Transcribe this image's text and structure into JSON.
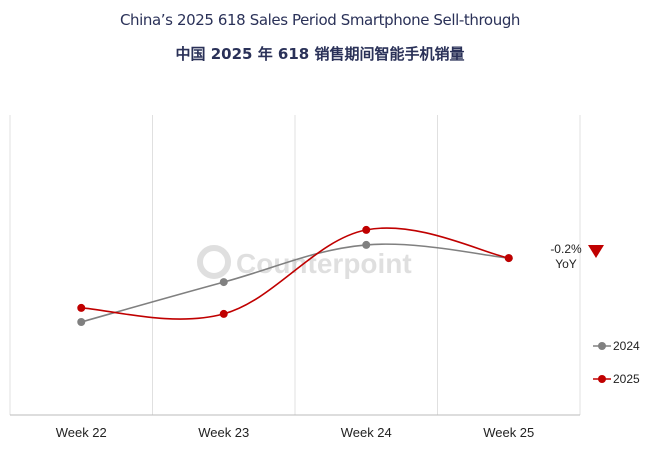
{
  "title": "China’s 2025 618 Sales Period Smartphone Sell-through",
  "subtitle": "中国 2025 年 618 销售期间智能手机销量",
  "watermark": "Counterpoint",
  "chart_data": {
    "type": "line",
    "categories": [
      "Week 22",
      "Week 23",
      "Week 24",
      "Week 25"
    ],
    "series": [
      {
        "name": "2024",
        "color": "#808080",
        "values": [
          31,
          44.3,
          56.7,
          52.3
        ]
      },
      {
        "name": "2025",
        "color": "#c00000",
        "values": [
          35.7,
          33.7,
          61.7,
          52.3
        ]
      }
    ],
    "ylim": [
      0,
      100
    ],
    "y_axis_shown": false,
    "grid": "vertical",
    "smooth": true,
    "annotation": {
      "value": "-0.2%",
      "label": "YoY",
      "icon": "down-triangle-icon",
      "color": "#c00000"
    },
    "legend": "right"
  }
}
